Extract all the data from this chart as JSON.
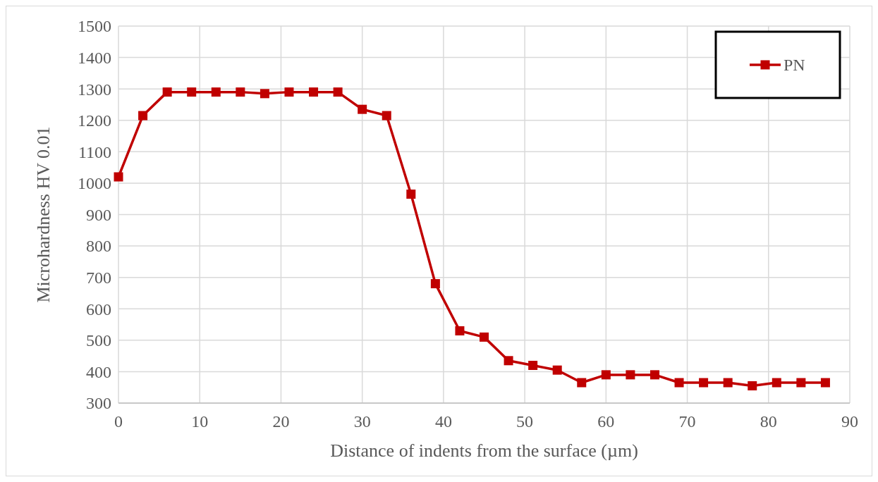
{
  "chart_data": {
    "type": "line",
    "xlabel": "Distance of indents from the surface (µm)",
    "ylabel": "Microhardness HV 0.01",
    "x": [
      0,
      3,
      6,
      9,
      12,
      15,
      18,
      21,
      24,
      27,
      30,
      33,
      36,
      39,
      42,
      45,
      48,
      51,
      54,
      57,
      60,
      63,
      66,
      69,
      72,
      75,
      78,
      81,
      84,
      87
    ],
    "series": [
      {
        "name": "PN",
        "color": "#c00000",
        "values": [
          1020,
          1215,
          1290,
          1290,
          1290,
          1290,
          1285,
          1290,
          1290,
          1290,
          1235,
          1215,
          965,
          680,
          530,
          510,
          435,
          420,
          405,
          365,
          390,
          390,
          390,
          365,
          365,
          365,
          355,
          365,
          365,
          365
        ]
      }
    ],
    "xlim": [
      0,
      90
    ],
    "xticks": [
      0,
      10,
      20,
      30,
      40,
      50,
      60,
      70,
      80,
      90
    ],
    "ylim": [
      300,
      1500
    ],
    "yticks": [
      300,
      400,
      500,
      600,
      700,
      800,
      900,
      1000,
      1100,
      1200,
      1300,
      1400,
      1500
    ],
    "grid": true,
    "legend": "top right",
    "marker": "square",
    "line_style": "solid"
  }
}
